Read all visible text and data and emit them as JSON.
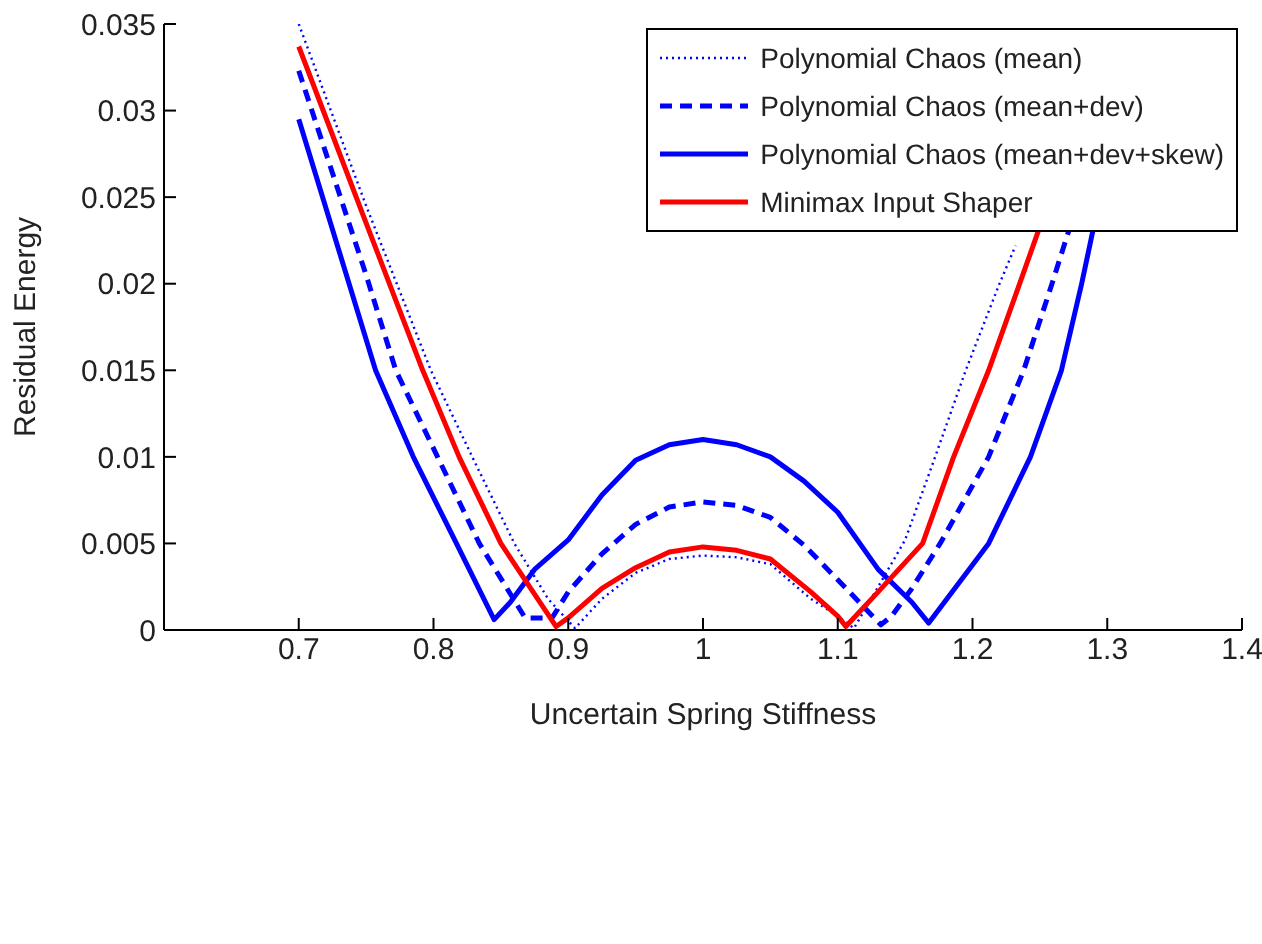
{
  "chart_data": {
    "type": "line",
    "xlabel": "Uncertain Spring Stiffness",
    "ylabel": "Residual Energy",
    "xlim": [
      0.6,
      1.4
    ],
    "xticks": [
      0.7,
      0.8,
      0.9,
      1,
      1.1,
      1.2,
      1.3,
      1.4
    ],
    "ylim": [
      0,
      0.035
    ],
    "yticks": [
      0,
      0.005,
      0.01,
      0.015,
      0.02,
      0.025,
      0.03,
      0.035
    ],
    "legend": "top right",
    "marker": "none",
    "series": [
      {
        "name": "Polynomial Chaos (mean)",
        "color": "#0000ff",
        "line_style": "dotted",
        "x": [
          0.7,
          0.75,
          0.798,
          0.83,
          0.86,
          0.885,
          0.905,
          0.925,
          0.95,
          0.975,
          1,
          1.025,
          1.05,
          1.08,
          1.1,
          1.112,
          1.13,
          1.15,
          1.17,
          1.195,
          1.22,
          1.232
        ],
        "values": [
          0.035,
          0.0245,
          0.015,
          0.0098,
          0.005,
          0.0018,
          0.0001,
          0.0018,
          0.0033,
          0.0041,
          0.0043,
          0.0042,
          0.0038,
          0.0018,
          0.0008,
          0.0001,
          0.0025,
          0.0052,
          0.0095,
          0.015,
          0.02,
          0.0222
        ]
      },
      {
        "name": "Polynomial Chaos (mean+dev)",
        "color": "#0000ff",
        "line_style": "dashed",
        "x": [
          0.7,
          0.75,
          0.772,
          0.803,
          0.834,
          0.868,
          0.888,
          0.9,
          0.925,
          0.95,
          0.975,
          1,
          1.025,
          1.05,
          1.075,
          1.1,
          1.132,
          1.14,
          1.155,
          1.176,
          1.212,
          1.238,
          1.259,
          1.272
        ],
        "values": [
          0.0323,
          0.0205,
          0.015,
          0.01,
          0.005,
          0.0007,
          0.0007,
          0.0022,
          0.0044,
          0.0061,
          0.0071,
          0.0074,
          0.0072,
          0.0065,
          0.0049,
          0.0029,
          0.0003,
          0.0008,
          0.0024,
          0.005,
          0.01,
          0.015,
          0.02,
          0.0232
        ]
      },
      {
        "name": "Polynomial Chaos (mean+dev+skew)",
        "color": "#0000ff",
        "line_style": "solid",
        "x": [
          0.7,
          0.757,
          0.785,
          0.817,
          0.845,
          0.857,
          0.875,
          0.9,
          0.925,
          0.95,
          0.975,
          1,
          1.025,
          1.05,
          1.075,
          1.1,
          1.13,
          1.155,
          1.1675,
          1.212,
          1.243,
          1.266,
          1.281,
          1.29
        ],
        "values": [
          0.0295,
          0.015,
          0.01,
          0.005,
          0.0006,
          0.0016,
          0.0035,
          0.0052,
          0.0078,
          0.0098,
          0.0107,
          0.011,
          0.0107,
          0.01,
          0.0086,
          0.0068,
          0.0035,
          0.0016,
          0.0004,
          0.005,
          0.01,
          0.015,
          0.02,
          0.0233
        ]
      },
      {
        "name": "Minimax Input Shaper",
        "color": "#ff0000",
        "line_style": "solid",
        "x": [
          0.7,
          0.75,
          0.792,
          0.819,
          0.85,
          0.891,
          0.9,
          0.925,
          0.95,
          0.975,
          1,
          1.025,
          1.05,
          1.08,
          1.1,
          1.106,
          1.13,
          1.163,
          1.186,
          1.212,
          1.235,
          1.25
        ],
        "values": [
          0.0337,
          0.0235,
          0.015,
          0.01,
          0.005,
          0.0002,
          0.0007,
          0.0024,
          0.0036,
          0.0045,
          0.0048,
          0.0046,
          0.0041,
          0.0022,
          0.0008,
          0.0002,
          0.0022,
          0.005,
          0.01,
          0.015,
          0.02,
          0.0233
        ]
      }
    ]
  }
}
